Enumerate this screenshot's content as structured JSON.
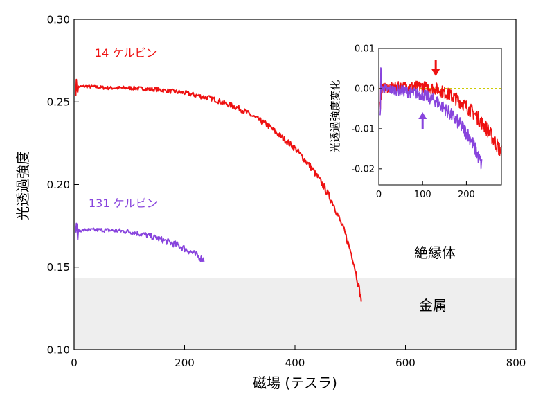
{
  "chart_data": [
    {
      "type": "line",
      "xlabel": "磁場 (テスラ)",
      "ylabel": "光透過強度",
      "xlim": [
        0,
        800
      ],
      "ylim": [
        0.1,
        0.3
      ],
      "x_ticks": [
        "0",
        "200",
        "400",
        "600",
        "800"
      ],
      "y_ticks": [
        "0.10",
        "0.15",
        "0.20",
        "0.25",
        "0.30"
      ],
      "grid": false,
      "legend": "labels next to curves",
      "regions": [
        {
          "label": "絶縁体",
          "range": [
            0.1435,
            0.3
          ]
        },
        {
          "label": "金属",
          "range": [
            0.1,
            0.1435
          ],
          "fill": "#eeeeee"
        }
      ],
      "series": [
        {
          "name": "14 ケルビン",
          "color": "#ee1111",
          "x": [
            3,
            20,
            60,
            100,
            150,
            200,
            250,
            300,
            350,
            400,
            430,
            450,
            470,
            490,
            505,
            515,
            520
          ],
          "y": [
            0.259,
            0.2595,
            0.2585,
            0.2585,
            0.2575,
            0.2555,
            0.252,
            0.246,
            0.236,
            0.222,
            0.21,
            0.2,
            0.188,
            0.171,
            0.155,
            0.139,
            0.13
          ]
        },
        {
          "name": "131 ケルビン",
          "color": "#8844dd",
          "x": [
            3,
            20,
            50,
            80,
            100,
            130,
            160,
            190,
            210,
            235
          ],
          "y": [
            0.172,
            0.1725,
            0.1725,
            0.172,
            0.1715,
            0.1695,
            0.1665,
            0.163,
            0.1595,
            0.1545
          ]
        }
      ]
    },
    {
      "type": "line",
      "ylabel": "光透過強度変化",
      "xlim": [
        0,
        280
      ],
      "ylim": [
        -0.024,
        0.01
      ],
      "x_ticks": [
        "0",
        "100",
        "200"
      ],
      "y_ticks": [
        "0.01",
        "0.00",
        "-0.01",
        "-0.02"
      ],
      "reference_line": {
        "y": 0,
        "color": "#cccc00",
        "style": "dotted"
      },
      "markers": [
        {
          "x": 130,
          "color": "#ee1111",
          "direction": "down"
        },
        {
          "x": 100,
          "color": "#8844dd",
          "direction": "up"
        }
      ],
      "series": [
        {
          "name": "14 ケルビン",
          "color": "#ee1111",
          "x": [
            3,
            50,
            100,
            130,
            160,
            190,
            220,
            250,
            280
          ],
          "y": [
            0.0,
            0.0005,
            0.0005,
            0.0,
            -0.0015,
            -0.0035,
            -0.0065,
            -0.0105,
            -0.016
          ]
        },
        {
          "name": "131 ケルビン",
          "color": "#8844dd",
          "x": [
            3,
            50,
            100,
            130,
            160,
            190,
            210,
            235
          ],
          "y": [
            0.0,
            -0.0005,
            -0.0015,
            -0.003,
            -0.006,
            -0.0095,
            -0.0125,
            -0.019
          ]
        }
      ]
    }
  ]
}
